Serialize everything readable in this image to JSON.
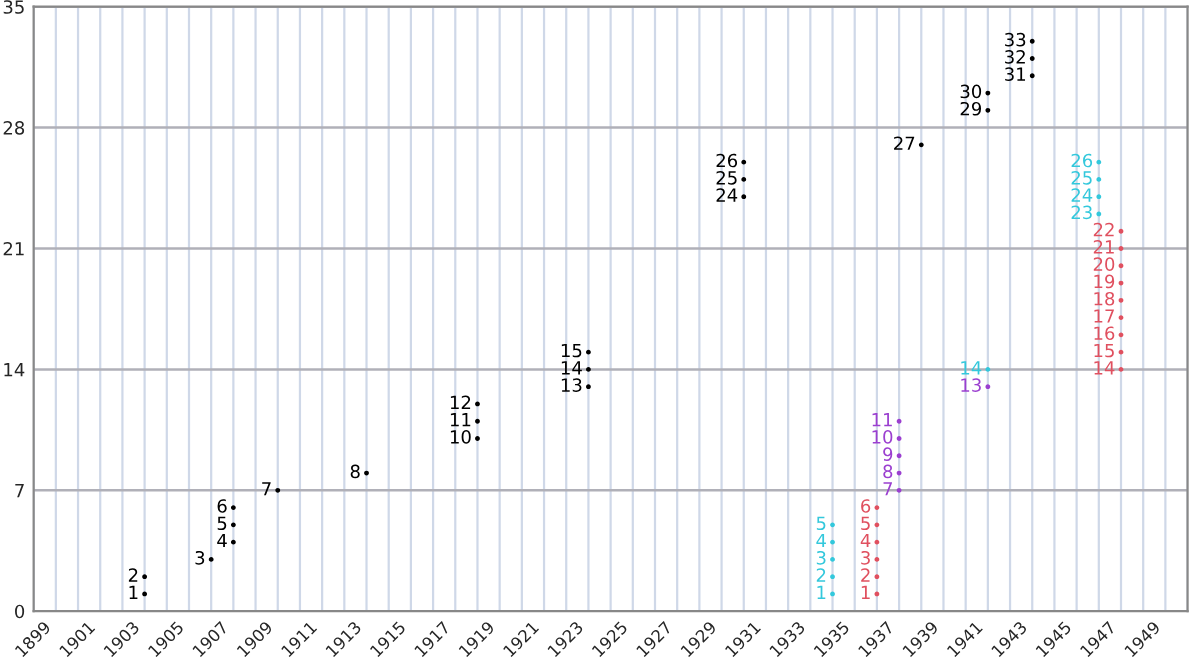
{
  "chart_data": {
    "type": "scatter",
    "marker": "circle",
    "data_labels": true,
    "legend": false,
    "grid": true,
    "series": [
      {
        "color": "#000000",
        "x": [
          1904,
          1904,
          1907,
          1908,
          1908,
          1908,
          1910,
          1914,
          1919,
          1919,
          1919,
          1924,
          1924,
          1924,
          1931,
          1931,
          1931,
          1939,
          1942,
          1942,
          1944,
          1944,
          1944
        ],
        "values": [
          1,
          2,
          3,
          4,
          5,
          6,
          7,
          8,
          10,
          11,
          12,
          13,
          14,
          15,
          24,
          25,
          26,
          27,
          29,
          30,
          31,
          32,
          33
        ]
      },
      {
        "color": "#33c8dc",
        "x": [
          1935,
          1935,
          1935,
          1935,
          1935,
          1942,
          1947,
          1947,
          1947,
          1947
        ],
        "values": [
          1,
          2,
          3,
          4,
          5,
          14,
          23,
          24,
          25,
          26
        ]
      },
      {
        "color": "#e0505f",
        "x": [
          1937,
          1937,
          1937,
          1937,
          1937,
          1937,
          1948,
          1948,
          1948,
          1948,
          1948,
          1948,
          1948,
          1948,
          1948
        ],
        "values": [
          1,
          2,
          3,
          4,
          5,
          6,
          14,
          15,
          16,
          17,
          18,
          19,
          20,
          21,
          22
        ]
      },
      {
        "color": "#9b3fd0",
        "x": [
          1938,
          1938,
          1938,
          1938,
          1938,
          1942
        ],
        "values": [
          7,
          8,
          9,
          10,
          11,
          13
        ]
      }
    ],
    "xlim": [
      1899,
      1951
    ],
    "ylim": [
      0,
      35
    ],
    "yticks": [
      0,
      7,
      14,
      21,
      28,
      35
    ],
    "xticks": [
      1899,
      {
        "value": 1900,
        "label": null
      },
      1901,
      {
        "value": 1902,
        "label": null
      },
      1903,
      {
        "value": 1904,
        "label": null
      },
      1905,
      {
        "value": 1906,
        "label": null
      },
      1907,
      {
        "value": 1908,
        "label": null
      },
      1909,
      {
        "value": 1910,
        "label": null
      },
      1911,
      {
        "value": 1912,
        "label": null
      },
      1913,
      {
        "value": 1914,
        "label": null
      },
      1915,
      {
        "value": 1916,
        "label": null
      },
      1917,
      {
        "value": 1918,
        "label": null
      },
      1919,
      {
        "value": 1920,
        "label": null
      },
      1921,
      {
        "value": 1922,
        "label": null
      },
      1923,
      {
        "value": 1924,
        "label": null
      },
      1925,
      {
        "value": 1926,
        "label": null
      },
      1927,
      {
        "value": 1928,
        "label": null
      },
      1929,
      {
        "value": 1930,
        "label": null
      },
      1931,
      {
        "value": 1932,
        "label": null
      },
      1933,
      {
        "value": 1934,
        "label": null
      },
      1935,
      {
        "value": 1936,
        "label": null
      },
      1937,
      {
        "value": 1938,
        "label": null
      },
      1939,
      {
        "value": 1940,
        "label": null
      },
      1941,
      {
        "value": 1942,
        "label": null
      },
      1943,
      {
        "value": 1944,
        "label": null
      },
      1945,
      {
        "value": 1946,
        "label": null
      },
      1947,
      {
        "value": 1948,
        "label": null
      },
      1949,
      {
        "value": 1950,
        "label": null
      },
      {
        "value": 1951,
        "label": null
      }
    ]
  }
}
